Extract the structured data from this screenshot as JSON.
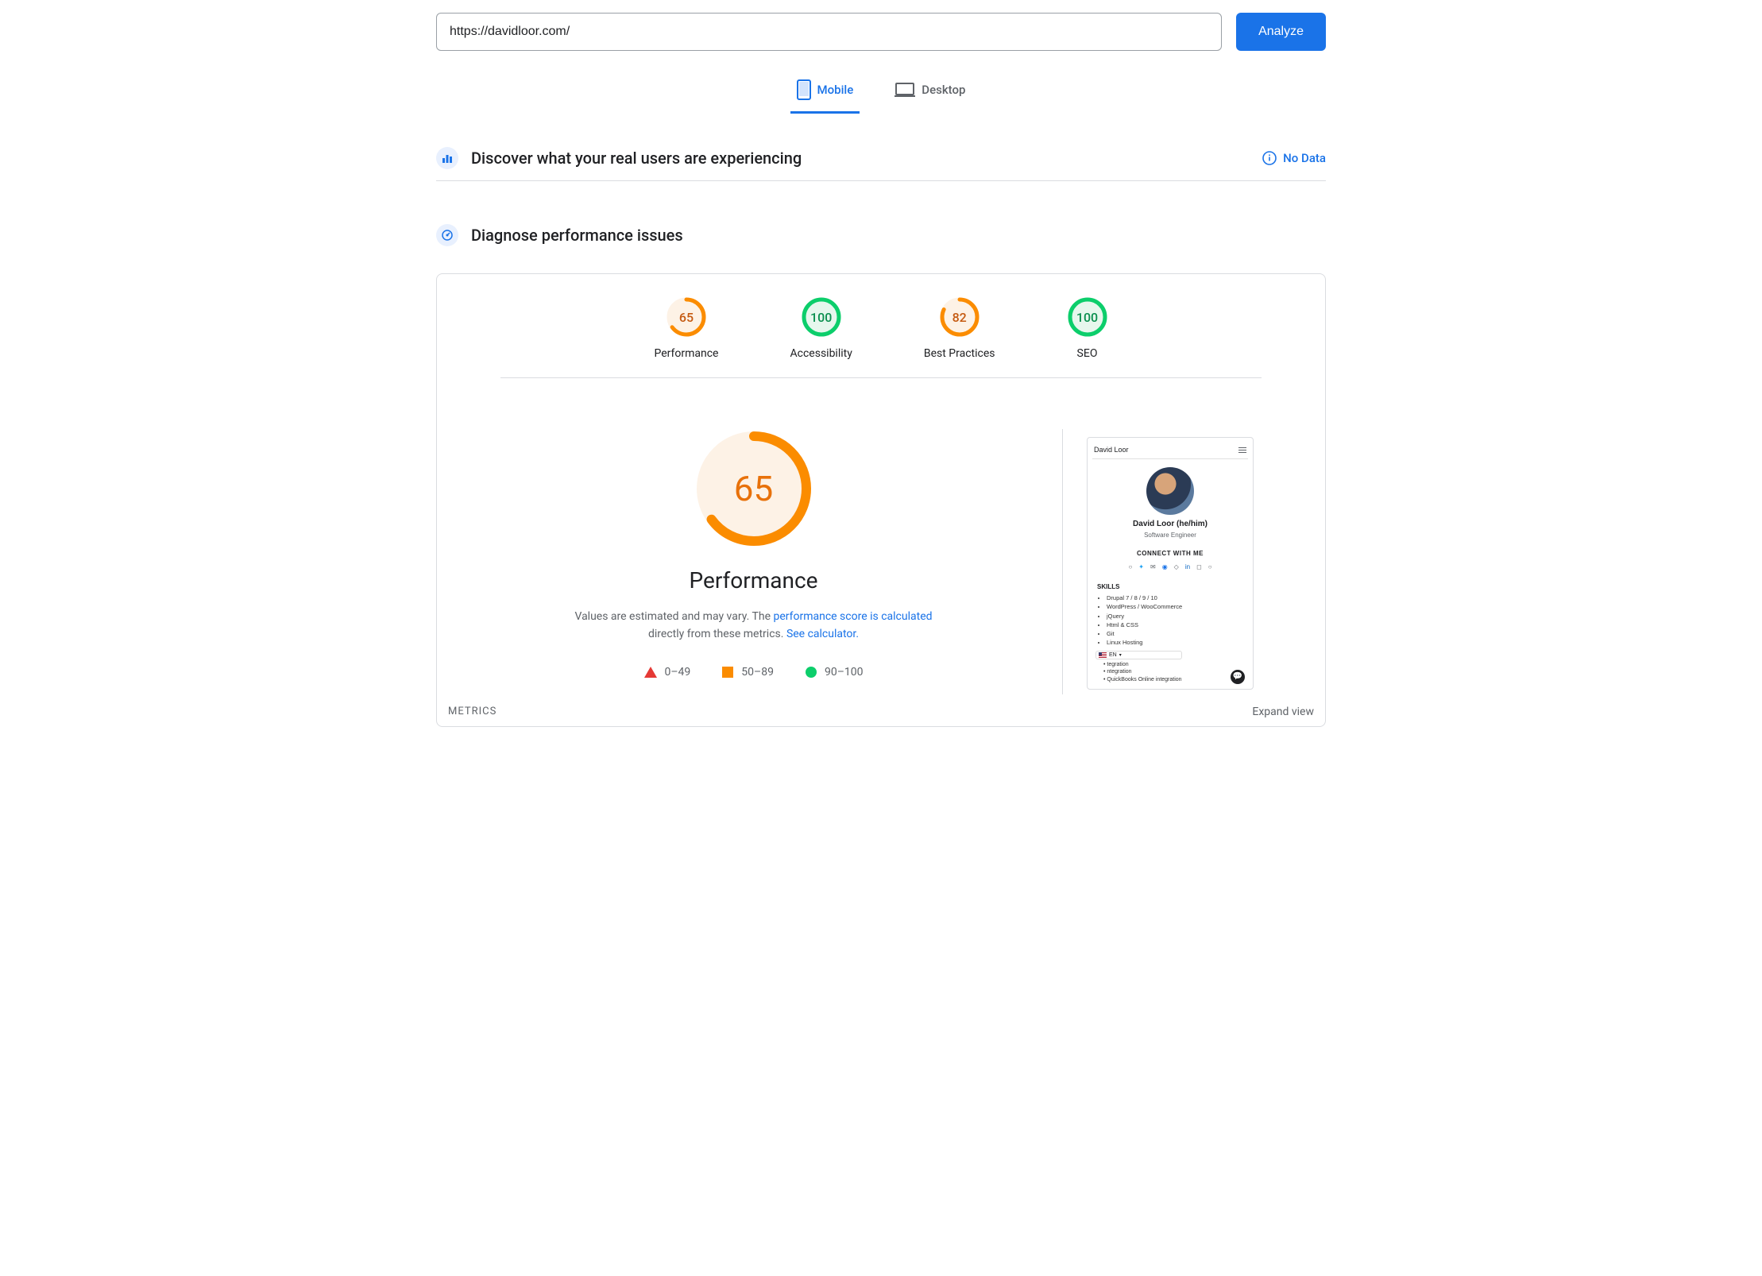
{
  "url_input": {
    "value": "https://davidloor.com/"
  },
  "analyze_button": {
    "label": "Analyze"
  },
  "tabs": {
    "mobile": {
      "label": "Mobile",
      "active": true
    },
    "desktop": {
      "label": "Desktop",
      "active": false
    }
  },
  "field_data": {
    "heading": "Discover what your real users are experiencing",
    "no_data_label": "No Data"
  },
  "diagnose": {
    "heading": "Diagnose performance issues"
  },
  "gauges": {
    "ring_bg_orange": "#fdf2e6",
    "ring_bg_green": "#e6f7ed",
    "orange": "#fb8c00",
    "green": "#0cce6b",
    "red": "#e53935",
    "items": [
      {
        "key": "performance",
        "label": "Performance",
        "value": 65,
        "color": "#fb8c00",
        "bg": "#fdf2e6",
        "text": "#c55a11"
      },
      {
        "key": "accessibility",
        "label": "Accessibility",
        "value": 100,
        "color": "#0cce6b",
        "bg": "#e6f7ed",
        "text": "#0a8f4e"
      },
      {
        "key": "bestpractices",
        "label": "Best Practices",
        "value": 82,
        "color": "#fb8c00",
        "bg": "#fdf2e6",
        "text": "#c55a11"
      },
      {
        "key": "seo",
        "label": "SEO",
        "value": 100,
        "color": "#0cce6b",
        "bg": "#e6f7ed",
        "text": "#0a8f4e"
      }
    ]
  },
  "main_gauge": {
    "value": 65,
    "label": "Performance",
    "color": "#fb8c00",
    "bg": "#fdf2e6",
    "text": "#e8710a",
    "desc_prefix": "Values are estimated and may vary. The ",
    "desc_link1": "performance score is calculated",
    "desc_mid": " directly from these metrics. ",
    "desc_link2": "See calculator."
  },
  "legend": {
    "bad": "0–49",
    "mid": "50–89",
    "good": "90–100"
  },
  "metrics_bar": {
    "label": "METRICS",
    "expand": "Expand view"
  },
  "thumbnail": {
    "brand": "David Loor",
    "name": "David Loor (he/him)",
    "role": "Software Engineer",
    "connect": "CONNECT WITH ME",
    "skills_h": "SKILLS",
    "skills": [
      "Drupal 7 / 8 / 9 / 10",
      "WordPress / WooCommerce",
      "jQuery",
      "Html & CSS",
      "Git",
      "Linux Hosting"
    ],
    "extra_lines": [
      "tegration",
      "ntegration",
      "QuickBooks Online integration"
    ],
    "lang": "EN"
  }
}
